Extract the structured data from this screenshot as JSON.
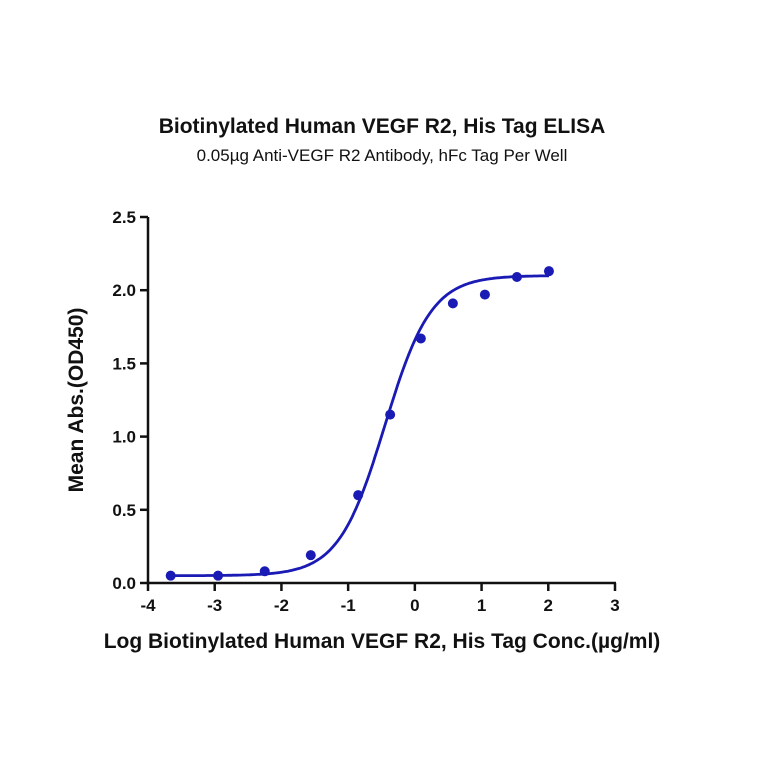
{
  "chart_data": {
    "type": "scatter",
    "title": "Biotinylated Human VEGF R2, His Tag ELISA",
    "subtitle": "0.05µg Anti-VEGF R2 Antibody, hFc Tag Per Well",
    "xlabel": "Log Biotinylated Human VEGF R2, His Tag Conc.(µg/ml)",
    "ylabel": "Mean Abs.(OD450)",
    "xlim": [
      -4,
      3
    ],
    "ylim": [
      0,
      2.5
    ],
    "xticks": [
      "-4",
      "-3",
      "-2",
      "-1",
      "0",
      "1",
      "2",
      "3"
    ],
    "yticks": [
      "0.0",
      "0.5",
      "1.0",
      "1.5",
      "2.0",
      "2.5"
    ],
    "grid": false,
    "series": [
      {
        "name": "Mean Abs.",
        "color": "#1a1ab4",
        "fit": "4PL sigmoidal",
        "x": [
          -3.66,
          -2.95,
          -2.25,
          -1.56,
          -0.85,
          -0.37,
          0.09,
          0.57,
          1.05,
          1.53,
          2.01
        ],
        "y": [
          0.05,
          0.05,
          0.08,
          0.19,
          0.6,
          1.15,
          1.67,
          1.91,
          1.97,
          2.09,
          2.13
        ]
      }
    ]
  }
}
